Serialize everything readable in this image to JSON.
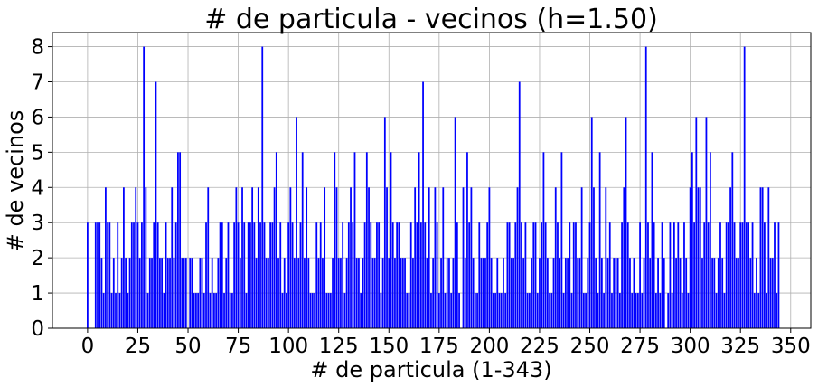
{
  "chart_data": {
    "type": "bar",
    "title": "# de particula - vecinos (h=1.50)",
    "xlabel": "# de particula (1-343)",
    "ylabel": "# de vecinos",
    "xlim": [
      -17.5,
      360
    ],
    "ylim": [
      0,
      8.4
    ],
    "xticks": [
      0,
      25,
      50,
      75,
      100,
      125,
      150,
      175,
      200,
      225,
      250,
      275,
      300,
      325,
      350
    ],
    "yticks": [
      0,
      1,
      2,
      3,
      4,
      5,
      6,
      7,
      8
    ],
    "grid": true,
    "bar_color": "#0000ff",
    "series": [
      {
        "x_start": 0,
        "values": [
          3,
          0,
          0,
          0,
          3,
          3,
          3,
          2,
          1,
          4,
          3,
          3,
          1,
          2,
          1,
          3,
          1,
          2,
          4,
          2,
          1,
          2,
          3,
          3,
          4,
          3,
          2,
          3,
          8,
          4,
          1,
          2,
          2,
          3,
          7,
          3,
          2,
          2,
          1,
          3,
          2,
          2,
          4,
          2,
          3,
          5,
          5,
          2,
          2,
          2,
          0,
          2,
          2,
          1,
          1,
          1,
          2,
          2,
          1,
          3,
          4,
          1,
          2,
          1,
          1,
          2,
          3,
          3,
          1,
          2,
          3,
          1,
          1,
          3,
          4,
          3,
          2,
          4,
          3,
          1,
          3,
          3,
          4,
          3,
          2,
          4,
          3,
          8,
          3,
          2,
          2,
          3,
          3,
          4,
          5,
          2,
          3,
          1,
          2,
          1,
          3,
          4,
          3,
          2,
          6,
          2,
          3,
          5,
          2,
          4,
          2,
          1,
          1,
          1,
          3,
          2,
          3,
          2,
          4,
          1,
          1,
          1,
          2,
          5,
          4,
          2,
          2,
          3,
          1,
          2,
          3,
          4,
          3,
          5,
          2,
          2,
          1,
          2,
          3,
          5,
          4,
          3,
          2,
          2,
          3,
          3,
          1,
          2,
          6,
          4,
          2,
          5,
          3,
          2,
          3,
          3,
          2,
          2,
          2,
          1,
          1,
          3,
          2,
          4,
          3,
          5,
          3,
          7,
          3,
          2,
          4,
          1,
          2,
          4,
          3,
          1,
          2,
          4,
          1,
          2,
          2,
          1,
          2,
          6,
          3,
          1,
          0,
          4,
          2,
          5,
          3,
          4,
          2,
          1,
          1,
          3,
          2,
          2,
          2,
          3,
          4,
          2,
          1,
          1,
          2,
          1,
          1,
          2,
          1,
          3,
          3,
          2,
          2,
          3,
          4,
          7,
          3,
          2,
          3,
          1,
          1,
          2,
          3,
          3,
          1,
          2,
          3,
          5,
          3,
          2,
          1,
          1,
          2,
          4,
          3,
          2,
          5,
          1,
          2,
          2,
          3,
          1,
          3,
          3,
          2,
          2,
          4,
          1,
          1,
          2,
          3,
          6,
          4,
          2,
          1,
          5,
          2,
          1,
          4,
          2,
          3,
          1,
          2,
          2,
          2,
          1,
          3,
          4,
          6,
          3,
          2,
          1,
          2,
          1,
          1,
          3,
          1,
          2,
          8,
          3,
          2,
          5,
          3,
          1,
          2,
          1,
          3,
          2,
          0,
          1,
          3,
          1,
          3,
          2,
          3,
          2,
          1,
          3,
          2,
          1,
          4,
          5,
          3,
          6,
          4,
          4,
          2,
          3,
          6,
          3,
          5,
          2,
          2,
          1,
          2,
          3,
          2,
          1,
          3,
          3,
          4,
          5,
          3,
          2,
          2,
          3,
          3,
          8,
          3,
          3,
          2,
          3,
          1,
          2,
          1,
          4,
          4,
          3,
          1,
          4,
          2,
          2,
          3,
          1,
          3
        ]
      }
    ]
  }
}
